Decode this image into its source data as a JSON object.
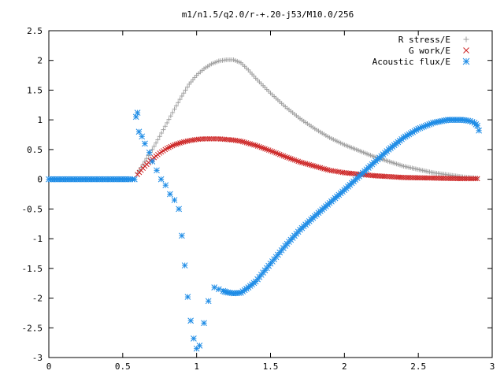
{
  "chart_data": {
    "type": "scatter",
    "title": "m1/n1.5/q2.0/r-+.20-j53/M10.0/256",
    "xlabel": "",
    "ylabel": "",
    "xlim": [
      0,
      3
    ],
    "ylim": [
      -3,
      2.5
    ],
    "xticks": [
      "0",
      "0.5",
      "1",
      "1.5",
      "2",
      "2.5",
      "3"
    ],
    "yticks": [
      "2.5",
      "2",
      "1.5",
      "1",
      "0.5",
      "0",
      "-0.5",
      "-1",
      "-1.5",
      "-2",
      "-2.5",
      "-3"
    ],
    "grid": false,
    "legend_position": "top-right",
    "series": [
      {
        "name": "R stress/E",
        "color": "#a0a0a0",
        "marker": "plus",
        "x": [
          0.6,
          0.65,
          0.7,
          0.75,
          0.8,
          0.85,
          0.9,
          0.95,
          1.0,
          1.05,
          1.1,
          1.15,
          1.2,
          1.25,
          1.3,
          1.35,
          1.4,
          1.5,
          1.6,
          1.7,
          1.8,
          1.9,
          2.0,
          2.2,
          2.4,
          2.6,
          2.8,
          2.9
        ],
        "y": [
          0.1,
          0.3,
          0.5,
          0.72,
          0.95,
          1.18,
          1.4,
          1.6,
          1.75,
          1.86,
          1.94,
          1.99,
          2.01,
          2.01,
          1.96,
          1.84,
          1.7,
          1.45,
          1.22,
          1.02,
          0.85,
          0.7,
          0.58,
          0.38,
          0.22,
          0.11,
          0.04,
          0.02
        ]
      },
      {
        "name": "G work/E",
        "color": "#cc2222",
        "marker": "cross",
        "x": [
          0.6,
          0.65,
          0.7,
          0.75,
          0.8,
          0.85,
          0.9,
          0.95,
          1.0,
          1.05,
          1.1,
          1.15,
          1.2,
          1.25,
          1.3,
          1.4,
          1.5,
          1.6,
          1.7,
          1.8,
          1.9,
          2.0,
          2.2,
          2.4,
          2.6,
          2.8,
          2.9
        ],
        "y": [
          0.08,
          0.22,
          0.34,
          0.44,
          0.52,
          0.58,
          0.62,
          0.65,
          0.67,
          0.68,
          0.68,
          0.68,
          0.67,
          0.66,
          0.64,
          0.57,
          0.48,
          0.38,
          0.29,
          0.22,
          0.15,
          0.11,
          0.06,
          0.03,
          0.02,
          0.01,
          0.01
        ]
      },
      {
        "name": "Acoustic flux/E",
        "color": "#1e8ce6",
        "marker": "star",
        "x": [
          0.0,
          0.05,
          0.1,
          0.15,
          0.2,
          0.25,
          0.3,
          0.35,
          0.4,
          0.45,
          0.5,
          0.55,
          0.58,
          0.59,
          0.6,
          0.61,
          0.63,
          0.65,
          0.68,
          0.7,
          0.73,
          0.76,
          0.79,
          0.82,
          0.85,
          0.88,
          0.9,
          0.92,
          0.94,
          0.96,
          0.98,
          1.0,
          1.02,
          1.05,
          1.08,
          1.12,
          1.15,
          1.18,
          1.2,
          1.25,
          1.3,
          1.35,
          1.4,
          1.45,
          1.5,
          1.55,
          1.6,
          1.7,
          1.8,
          1.9,
          2.0,
          2.1,
          2.2,
          2.3,
          2.4,
          2.5,
          2.6,
          2.7,
          2.75,
          2.8,
          2.85,
          2.88,
          2.9,
          2.91
        ],
        "y": [
          0.0,
          0.0,
          0.0,
          0.0,
          0.0,
          0.0,
          0.0,
          0.0,
          0.0,
          0.0,
          0.0,
          0.0,
          0.0,
          1.05,
          1.12,
          0.8,
          0.72,
          0.6,
          0.45,
          0.3,
          0.15,
          0.0,
          -0.1,
          -0.25,
          -0.35,
          -0.5,
          -0.95,
          -1.45,
          -1.98,
          -2.38,
          -2.68,
          -2.85,
          -2.8,
          -2.42,
          -2.05,
          -1.82,
          -1.85,
          -1.88,
          -1.9,
          -1.92,
          -1.91,
          -1.82,
          -1.72,
          -1.57,
          -1.42,
          -1.27,
          -1.12,
          -0.85,
          -0.62,
          -0.4,
          -0.18,
          0.05,
          0.28,
          0.5,
          0.7,
          0.85,
          0.95,
          1.0,
          1.0,
          1.0,
          0.98,
          0.95,
          0.9,
          0.82
        ]
      }
    ]
  }
}
